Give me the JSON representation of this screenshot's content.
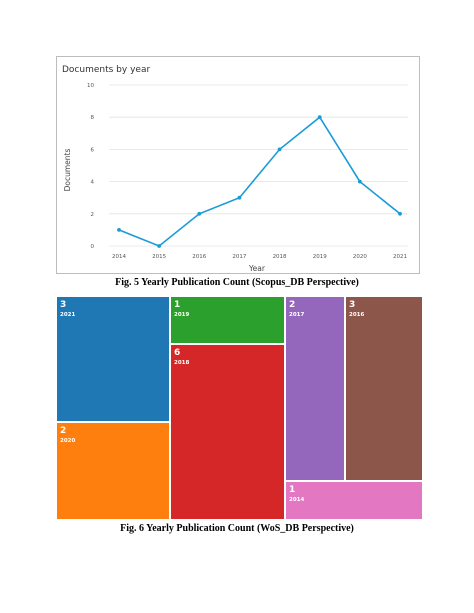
{
  "chart_data": [
    {
      "type": "line",
      "title": "Documents by year",
      "xlabel": "Year",
      "ylabel": "Documents",
      "x": [
        "2014",
        "2015",
        "2016",
        "2017",
        "2018",
        "2019",
        "2020",
        "2021"
      ],
      "series": [
        {
          "values": [
            1,
            0,
            2,
            3,
            6,
            8,
            4,
            2
          ]
        }
      ],
      "ylim": [
        0,
        10
      ],
      "yticks": [
        "0",
        "2",
        "4",
        "6",
        "8",
        "10"
      ],
      "grid": true,
      "color": "#1a9bd7"
    },
    {
      "type": "treemap",
      "items": [
        {
          "label": "2021",
          "value": "3",
          "num": 3,
          "color": "#1f77b4"
        },
        {
          "label": "2020",
          "value": "2",
          "num": 2,
          "color": "#ff7f0e"
        },
        {
          "label": "2019",
          "value": "1",
          "num": 1,
          "color": "#2ca02c"
        },
        {
          "label": "2018",
          "value": "6",
          "num": 6,
          "color": "#d62728"
        },
        {
          "label": "2017",
          "value": "2",
          "num": 2,
          "color": "#9467bd"
        },
        {
          "label": "2016",
          "value": "3",
          "num": 3,
          "color": "#8c564b"
        },
        {
          "label": "2014",
          "value": "1",
          "num": 1,
          "color": "#e377c2"
        }
      ]
    }
  ],
  "captions": {
    "fig5": "Fig. 5 Yearly Publication Count (Scopus_DB Perspective)",
    "fig6": "Fig. 6 Yearly Publication Count (WoS_DB Perspective)"
  }
}
